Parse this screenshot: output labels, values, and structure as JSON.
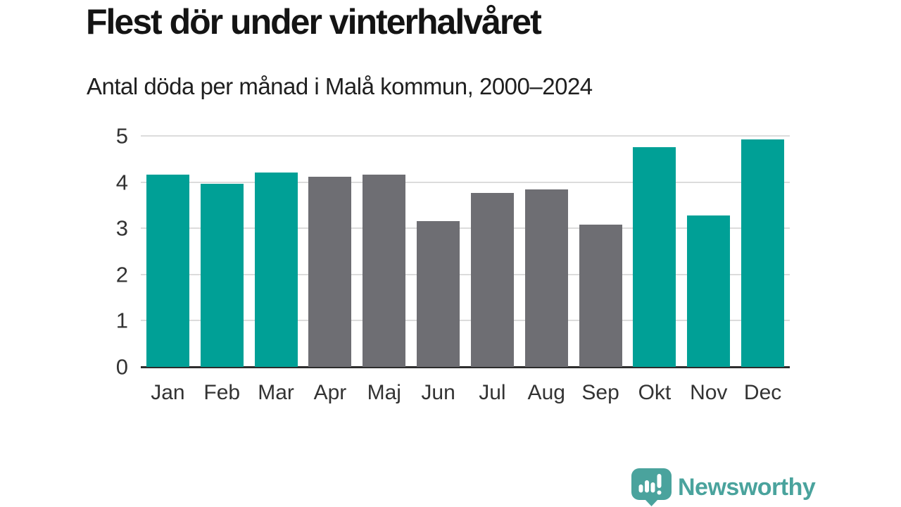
{
  "chart_data": {
    "type": "bar",
    "title": "Flest dör under vinterhalvåret",
    "subtitle": "Antal döda per månad i Malå kommun, 2000–2024",
    "categories": [
      "Jan",
      "Feb",
      "Mar",
      "Apr",
      "Maj",
      "Jun",
      "Jul",
      "Aug",
      "Sep",
      "Okt",
      "Nov",
      "Dec"
    ],
    "values": [
      4.16,
      3.96,
      4.2,
      4.12,
      4.16,
      3.16,
      3.76,
      3.84,
      3.08,
      4.76,
      3.28,
      4.92
    ],
    "bar_groups": [
      "winter",
      "winter",
      "winter",
      "summer",
      "summer",
      "summer",
      "summer",
      "summer",
      "summer",
      "winter",
      "winter",
      "winter"
    ],
    "ylim": [
      0,
      5
    ],
    "yticks": [
      0,
      1,
      2,
      3,
      4,
      5
    ],
    "xlabel": "",
    "ylabel": "",
    "grid": true,
    "legend": false,
    "colors": {
      "winter_bar": "#00a096",
      "summer_bar": "#6e6e73",
      "grid_line": "#dcdcdc",
      "baseline": "#2d2d2d",
      "axis_label": "#333333"
    }
  },
  "footer": {
    "brand": "Newsworthy",
    "brand_color": "#4aa39d"
  }
}
